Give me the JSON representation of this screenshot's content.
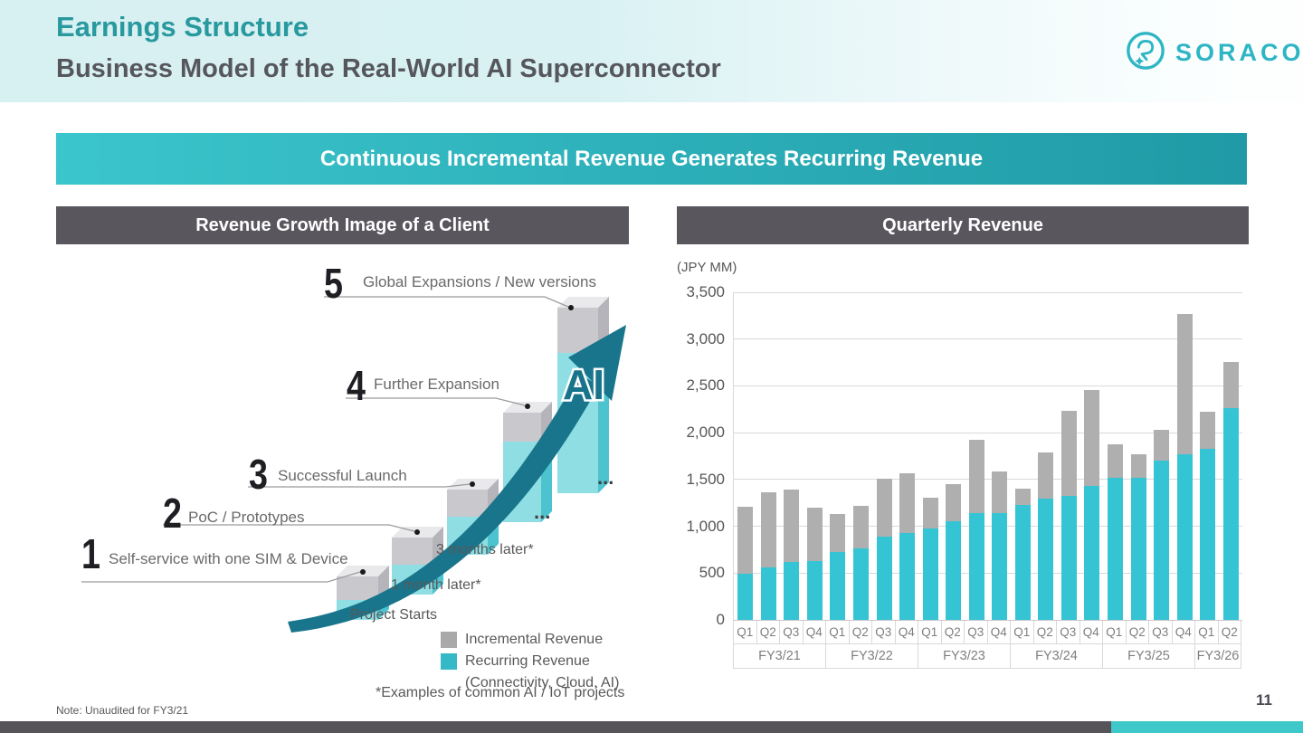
{
  "header": {
    "title": "Earnings Structure",
    "subtitle": "Business Model of the Real-World AI Superconnector",
    "brand": "SORACOM"
  },
  "banner": {
    "text": "Continuous Incremental Revenue Generates Recurring Revenue"
  },
  "left_panel": {
    "title": "Revenue Growth Image of a Client",
    "steps": [
      {
        "number": "1",
        "label": "Self-service with one SIM & Device"
      },
      {
        "number": "2",
        "label": "PoC / Prototypes"
      },
      {
        "number": "3",
        "label": "Successful Launch"
      },
      {
        "number": "4",
        "label": "Further Expansion"
      },
      {
        "number": "5",
        "label": "Global Expansions / New versions"
      }
    ],
    "timeline": {
      "start": "Project Starts",
      "m1": "1 month later*",
      "m3": "3 months later*"
    },
    "ellipsis": "...",
    "ai_label": "AI",
    "legend": [
      {
        "label": "Incremental Revenue",
        "color": "#a9a9a9"
      },
      {
        "label": "Recurring Revenue",
        "sublabel": "(Connectivity, Cloud, AI)",
        "color": "#35b8c8"
      }
    ],
    "footnote": "*Examples of common AI / IoT projects"
  },
  "right_panel": {
    "title": "Quarterly Revenue",
    "unit_label": "(JPY MM)"
  },
  "chart_data": {
    "type": "bar",
    "stacked": true,
    "title": "Quarterly Revenue",
    "ylabel": "(JPY MM)",
    "ylim": [
      0,
      3500
    ],
    "yticks": [
      0,
      500,
      1000,
      1500,
      2000,
      2500,
      3000,
      3500
    ],
    "grid": true,
    "categories": [
      "Q1",
      "Q2",
      "Q3",
      "Q4",
      "Q1",
      "Q2",
      "Q3",
      "Q4",
      "Q1",
      "Q2",
      "Q3",
      "Q4",
      "Q1",
      "Q2",
      "Q3",
      "Q4",
      "Q1",
      "Q2",
      "Q3",
      "Q4",
      "Q1",
      "Q2"
    ],
    "groups": [
      {
        "label": "FY3/21",
        "span": 4
      },
      {
        "label": "FY3/22",
        "span": 4
      },
      {
        "label": "FY3/23",
        "span": 4
      },
      {
        "label": "FY3/24",
        "span": 4
      },
      {
        "label": "FY3/25",
        "span": 4
      },
      {
        "label": "FY3/26",
        "span": 2
      }
    ],
    "series": [
      {
        "name": "Recurring Revenue (Connectivity, Cloud, AI)",
        "color": "#35c4d4",
        "values": [
          490,
          560,
          620,
          630,
          730,
          765,
          890,
          930,
          980,
          1050,
          1140,
          1140,
          1230,
          1300,
          1320,
          1430,
          1520,
          1520,
          1700,
          1770,
          1830,
          2260
        ]
      },
      {
        "name": "Incremental Revenue",
        "color": "#afafaf",
        "values": [
          720,
          800,
          770,
          570,
          400,
          455,
          620,
          640,
          330,
          400,
          780,
          450,
          170,
          490,
          910,
          1030,
          360,
          250,
          330,
          1500,
          390,
          500
        ]
      }
    ],
    "totals": [
      1210,
      1360,
      1390,
      1200,
      1130,
      1220,
      1510,
      1570,
      1310,
      1450,
      1920,
      1590,
      1400,
      1790,
      2230,
      2460,
      1880,
      1770,
      2030,
      3270,
      2220,
      2760
    ]
  },
  "footer": {
    "note": "Note: Unaudited for FY3/21",
    "page_number": "11"
  },
  "colors": {
    "accent_teal": "#2eb5c4",
    "banner_from": "#3bc5cc",
    "banner_to": "#1f9aa6",
    "panel_header_bg": "#59565e",
    "chart_recurring": "#35c4d4",
    "chart_incremental": "#afafaf",
    "footer_dark": "#565359",
    "footer_teal": "#3fc8c9"
  }
}
